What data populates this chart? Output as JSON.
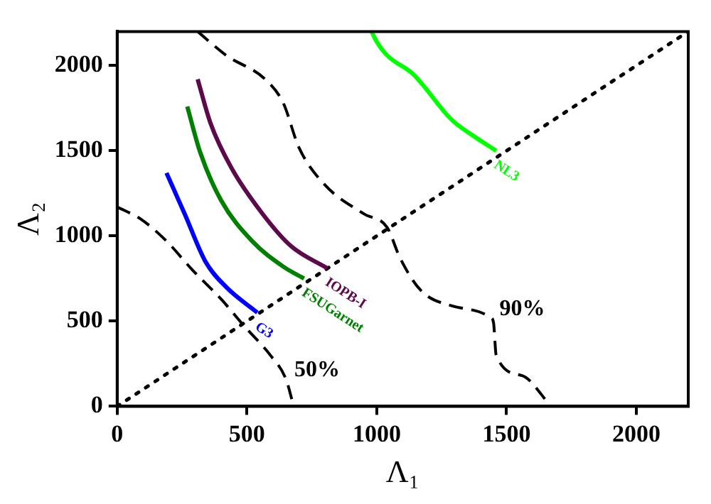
{
  "chart_data": {
    "type": "line",
    "xlabel": "Λ₁",
    "ylabel": "Λ₂",
    "xlim": [
      0,
      2200
    ],
    "ylim": [
      0,
      2200
    ],
    "xticks": [
      0,
      500,
      1000,
      1500,
      2000
    ],
    "yticks": [
      0,
      500,
      1000,
      1500,
      2000
    ],
    "grid": false,
    "legend": false,
    "marker": "none",
    "series": [
      {
        "name": "G3",
        "color": "#0000ff",
        "x": [
          190,
          260,
          340,
          420,
          540
        ],
        "values": [
          1370,
          1130,
          850,
          700,
          550
        ]
      },
      {
        "name": "FSUGarnet",
        "color": "#008000",
        "x": [
          270,
          320,
          400,
          520,
          640,
          720
        ],
        "values": [
          1760,
          1490,
          1210,
          970,
          820,
          750
        ]
      },
      {
        "name": "IOPB-I",
        "color": "#5c0a4a",
        "x": [
          310,
          360,
          440,
          560,
          670,
          810
        ],
        "values": [
          1920,
          1660,
          1400,
          1130,
          940,
          810
        ]
      },
      {
        "name": "NL3",
        "color": "#00ff00",
        "x": [
          980,
          1000,
          1040,
          1140,
          1290,
          1370,
          1460
        ],
        "values": [
          2200,
          2140,
          2060,
          1950,
          1680,
          1590,
          1500
        ]
      },
      {
        "color": "#000000",
        "line_style": "dashed",
        "x": [
          0,
          90,
          190,
          290,
          400,
          490,
          590,
          650,
          680
        ],
        "values": [
          1170,
          1100,
          970,
          800,
          630,
          470,
          300,
          160,
          0
        ]
      },
      {
        "color": "#000000",
        "line_style": "dashed",
        "x": [
          310,
          420,
          570,
          640,
          700,
          800,
          950,
          1040,
          1090,
          1170,
          1290,
          1440,
          1450,
          1460,
          1560,
          1660,
          1670
        ],
        "values": [
          2200,
          2060,
          1920,
          1780,
          1520,
          1300,
          1130,
          1050,
          870,
          680,
          590,
          520,
          490,
          300,
          180,
          20,
          0
        ]
      },
      {
        "color": "#000000",
        "line_style": "dotted",
        "x": [
          0,
          2200
        ],
        "values": [
          0,
          2200
        ]
      }
    ],
    "annotations": [
      {
        "text": "50%",
        "x": 650,
        "y": 160
      },
      {
        "text": "90%",
        "x": 1440,
        "y": 520
      }
    ]
  }
}
